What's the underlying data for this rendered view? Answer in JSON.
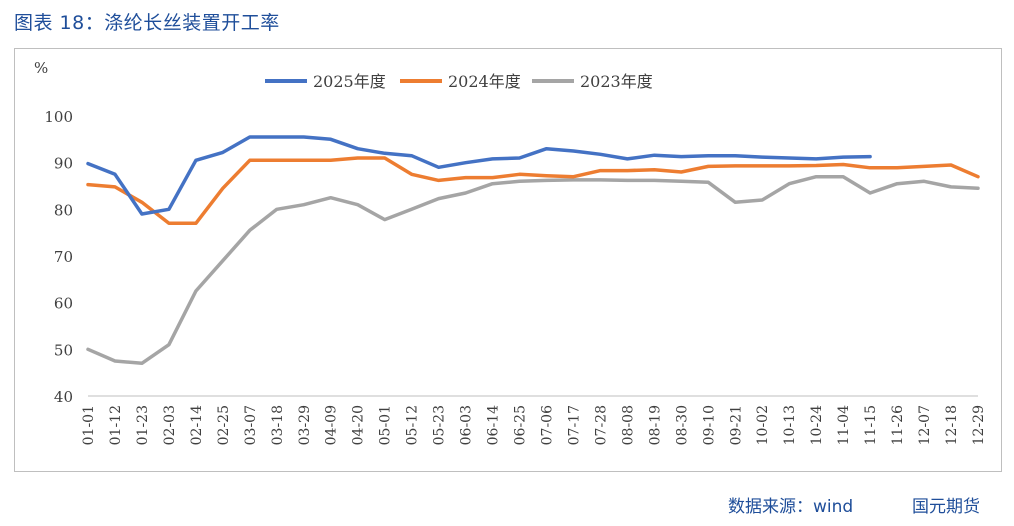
{
  "figure": {
    "title": "图表 18：涤纶长丝装置开工率",
    "source": "数据来源：wind",
    "brand": "国元期货"
  },
  "chart_data": {
    "type": "line",
    "title": "",
    "xlabel": "",
    "ylabel": "%",
    "ylim": [
      40,
      100
    ],
    "yticks": [
      40,
      50,
      60,
      70,
      80,
      90,
      100
    ],
    "grid": false,
    "legend": "top-center",
    "categories": [
      "01-01",
      "01-12",
      "01-23",
      "02-03",
      "02-14",
      "02-25",
      "03-07",
      "03-18",
      "03-29",
      "04-09",
      "04-20",
      "05-01",
      "05-12",
      "05-23",
      "06-03",
      "06-14",
      "06-25",
      "07-06",
      "07-17",
      "07-28",
      "08-08",
      "08-19",
      "08-30",
      "09-10",
      "09-21",
      "10-02",
      "10-13",
      "10-24",
      "11-04",
      "11-15",
      "11-26",
      "12-07",
      "12-18",
      "12-29"
    ],
    "series": [
      {
        "name": "2025年度",
        "color": "#4472c4",
        "values": [
          89.8,
          87.5,
          79.0,
          80.0,
          90.5,
          92.2,
          95.5,
          95.5,
          95.5,
          95.0,
          93.0,
          92.0,
          91.5,
          89.0,
          90.0,
          90.8,
          91.0,
          93.0,
          92.5,
          91.8,
          90.8,
          91.6,
          91.3,
          91.5,
          91.5,
          91.2,
          91.0,
          90.8,
          91.2,
          91.3,
          null,
          null,
          null,
          null
        ]
      },
      {
        "name": "2024年度",
        "color": "#ed7d31",
        "values": [
          85.3,
          84.8,
          81.5,
          77.0,
          77.0,
          84.5,
          90.5,
          90.5,
          90.5,
          90.5,
          91.0,
          91.0,
          87.5,
          86.2,
          86.8,
          86.8,
          87.5,
          87.2,
          87.0,
          88.3,
          88.3,
          88.5,
          88.0,
          89.2,
          89.3,
          89.3,
          89.3,
          89.4,
          89.6,
          88.9,
          88.9,
          89.2,
          89.5,
          87.0
        ]
      },
      {
        "name": "2023年度",
        "color": "#a5a5a5",
        "values": [
          50.0,
          47.5,
          47.0,
          51.0,
          62.5,
          69.0,
          75.5,
          80.0,
          81.0,
          82.5,
          81.0,
          77.8,
          80.0,
          82.3,
          83.5,
          85.5,
          86.0,
          86.2,
          86.3,
          86.3,
          86.2,
          86.2,
          86.0,
          85.8,
          81.5,
          82.0,
          85.5,
          87.0,
          87.0,
          83.5,
          85.5,
          86.0,
          84.8,
          84.5
        ]
      }
    ]
  }
}
